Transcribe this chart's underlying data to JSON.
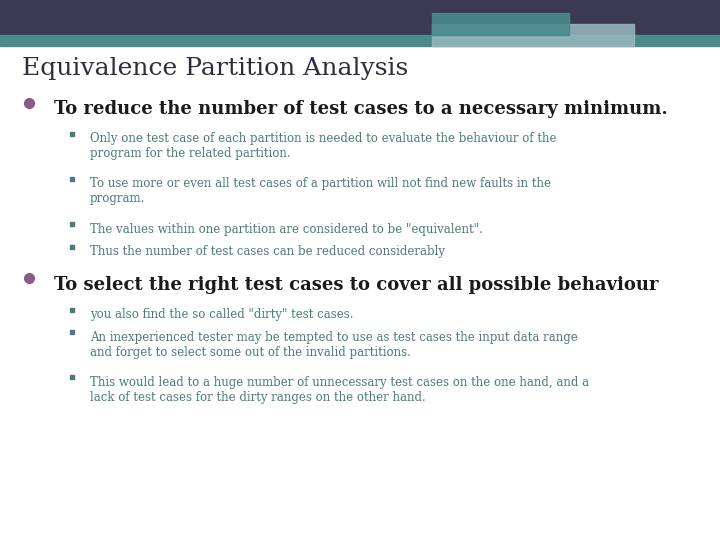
{
  "title": "Equivalence Partition Analysis",
  "title_color": "#2d2d3f",
  "title_fontsize": 18,
  "bg_color": "#ffffff",
  "header_bar_color": "#3a3a52",
  "header_bar2_color": "#4a8a8c",
  "accent_rect_color": "#9ab8c0",
  "bullet_color": "#8a5a8a",
  "sub_bullet_color": "#4a7a7c",
  "bullet1_text": "To reduce the number of test cases to a necessary minimum.",
  "bullet_fontsize": 13,
  "bullet_color2": "#1a1a1a",
  "bullet2_text": "To select the right test cases to cover all possible behaviour",
  "sub_bullet_fontsize": 8.5,
  "sub_items_1": [
    "Only one test case of each partition is needed to evaluate the behaviour of the\nprogram for the related partition.",
    "To use more or even all test cases of a partition will not find new faults in the\nprogram.",
    "The values within one partition are considered to be \"equivalent\".",
    "Thus the number of test cases can be reduced considerably"
  ],
  "sub_items_2": [
    "you also find the so called \"dirty\" test cases.",
    "An inexperienced tester may be tempted to use as test cases the input data range\nand forget to select some out of the invalid partitions.",
    "This would lead to a huge number of unnecessary test cases on the one hand, and a\nlack of test cases for the dirty ranges on the other hand."
  ]
}
